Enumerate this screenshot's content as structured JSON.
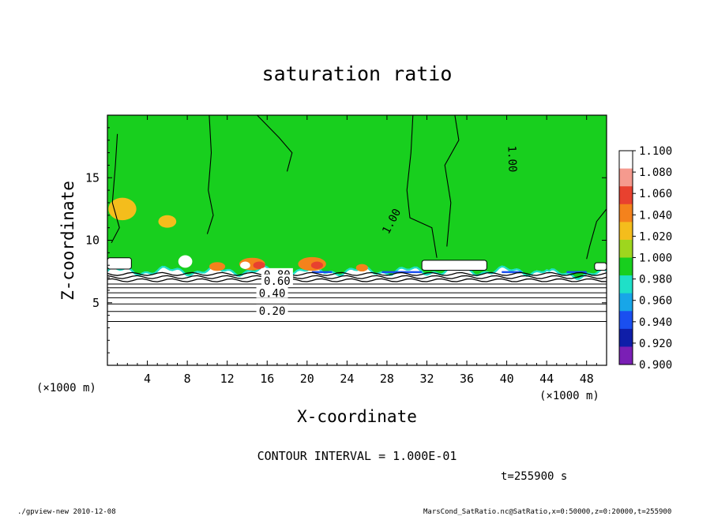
{
  "chart_data": {
    "type": "heatmap",
    "title": "saturation ratio",
    "xlabel": "X-coordinate",
    "ylabel": "Z-coordinate",
    "x_unit": "(×1000 m)",
    "y_unit": "(×1000 m)",
    "xlim": [
      0,
      50
    ],
    "ylim": [
      0,
      20
    ],
    "x_ticks": [
      4,
      8,
      12,
      16,
      20,
      24,
      28,
      32,
      36,
      40,
      44,
      48
    ],
    "y_ticks": [
      5,
      10,
      15
    ],
    "colorbar": {
      "levels": [
        "1.100",
        "1.080",
        "1.060",
        "1.040",
        "1.020",
        "1.000",
        "0.980",
        "0.960",
        "0.940",
        "0.920",
        "0.900"
      ],
      "colors": [
        "#ffffff",
        "#f59a8e",
        "#e8412f",
        "#f4821c",
        "#f4bd1c",
        "#9ed61e",
        "#18cf1e",
        "#1fe0c8",
        "#18a6e8",
        "#1a4ff0",
        "#0f1ea8",
        "#7a1fb5"
      ]
    },
    "contour_labels": [
      {
        "text": "1.00",
        "x": 40.5,
        "z": 16.5
      },
      {
        "text": "1.00",
        "x": 28.5,
        "z": 11.5
      },
      {
        "text": "0.80",
        "x": 17.0,
        "z": 7.2
      },
      {
        "text": "0.60",
        "x": 17.0,
        "z": 6.7
      },
      {
        "text": "0.40",
        "x": 16.5,
        "z": 5.7
      },
      {
        "text": "0.20",
        "x": 16.5,
        "z": 4.3
      }
    ],
    "contour_interval": "CONTOUR INTERVAL = 1.000E-01",
    "time": "t=255900 s"
  },
  "footer": {
    "left": "./gpview-new   2010-12-08",
    "right": "MarsCond_SatRatio.nc@SatRatio,x=0:50000,z=0:20000,t=255900"
  }
}
